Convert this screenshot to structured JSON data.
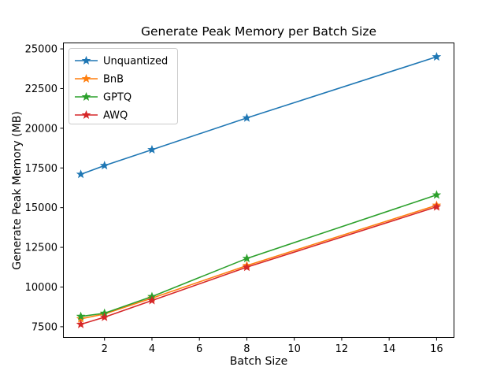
{
  "chart_data": {
    "type": "line",
    "title": "Generate Peak Memory per Batch Size",
    "xlabel": "Batch Size",
    "ylabel": "Generate Peak Memory (MB)",
    "x": [
      1,
      2,
      4,
      8,
      16
    ],
    "series": [
      {
        "name": "Unquantized",
        "color": "#1f77b4",
        "values": [
          17100,
          17650,
          18650,
          20650,
          24500
        ]
      },
      {
        "name": "BnB",
        "color": "#ff7f0e",
        "values": [
          8000,
          8300,
          9300,
          11350,
          15150
        ]
      },
      {
        "name": "GPTQ",
        "color": "#2ca02c",
        "values": [
          8150,
          8350,
          9400,
          11800,
          15800
        ]
      },
      {
        "name": "AWQ",
        "color": "#d62728",
        "values": [
          7650,
          8100,
          9150,
          11250,
          15050
        ]
      }
    ],
    "xlim": [
      0.25,
      16.75
    ],
    "ylim": [
      6800,
      25400
    ],
    "xticks": [
      2,
      4,
      6,
      8,
      10,
      12,
      14,
      16
    ],
    "yticks": [
      7500,
      10000,
      12500,
      15000,
      17500,
      20000,
      22500,
      25000
    ],
    "grid": false,
    "legend_position": "upper left",
    "marker": "star",
    "axes_color": "#000000",
    "legend_edge_color": "#cccccc"
  }
}
